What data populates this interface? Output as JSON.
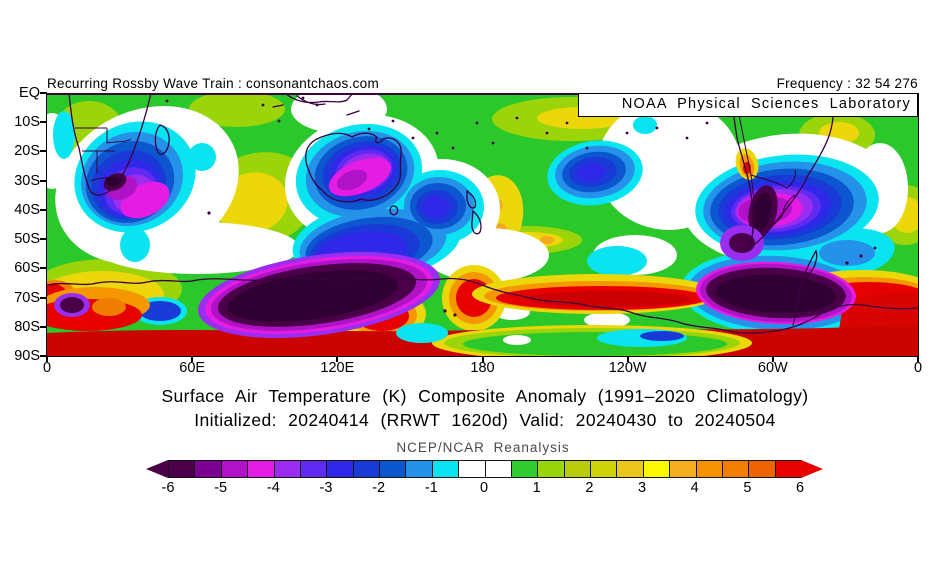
{
  "header": {
    "left_note": "Recurring Rossby Wave Train : consonantchaos.com",
    "right_note": "Frequency : 32 54 276"
  },
  "map": {
    "overlay_label": "NOAA Physical Sciences Laboratory",
    "y_tick_labels": [
      "EQ",
      "10S",
      "20S",
      "30S",
      "40S",
      "50S",
      "60S",
      "70S",
      "80S",
      "90S"
    ],
    "x_tick_labels": [
      "0",
      "60E",
      "120E",
      "180",
      "120W",
      "60W",
      "0"
    ]
  },
  "titles": {
    "line1": "Surface Air Temperature (K) Composite Anomaly (1991–2020 Climatology)",
    "line2": "Initialized: 20240414 (RRWT 1620d) Valid: 20240430 to 20240504"
  },
  "colorbar": {
    "title": "NCEP/NCAR Reanalysis",
    "tick_labels": [
      "-6",
      "-5",
      "-4",
      "-3",
      "-2",
      "-1",
      "0",
      "1",
      "2",
      "3",
      "4",
      "5",
      "6"
    ],
    "segment_colors": [
      "#4a0048",
      "#7a0091",
      "#b012c8",
      "#e41ce4",
      "#9a2df0",
      "#5f2af2",
      "#3028e8",
      "#1a3ad8",
      "#0c56d0",
      "#2492e8",
      "#0ae4f0",
      "#ffffff",
      "#ffffff",
      "#32cc32",
      "#98d60a",
      "#b8cc0c",
      "#cdd20a",
      "#e9c71b",
      "#fcf800",
      "#f6ae1e",
      "#f59200",
      "#f28000",
      "#ee6200",
      "#e60000"
    ],
    "left_arrow_color": "#4a0048",
    "right_arrow_color": "#e60000"
  },
  "chart_data": {
    "type": "heatmap",
    "title": "Surface Air Temperature (K) Composite Anomaly (1991–2020 Climatology)",
    "subtitle": "Initialized: 20240414 (RRWT 1620d) Valid: 20240430 to 20240504",
    "dataset_label": "NCEP/NCAR Reanalysis",
    "variable": "surface air temperature composite anomaly",
    "units": "K",
    "region": "Southern Hemisphere, equator to South Pole, all longitudes",
    "x_axis": {
      "ticks": [
        "0",
        "60E",
        "120E",
        "180",
        "120W",
        "60W",
        "0"
      ],
      "range_deg_east": [
        0,
        360
      ]
    },
    "y_axis": {
      "ticks": [
        "EQ",
        "10S",
        "20S",
        "30S",
        "40S",
        "50S",
        "60S",
        "70S",
        "80S",
        "90S"
      ],
      "range": [
        "EQ",
        "90S"
      ]
    },
    "colorbar": {
      "min": -6,
      "max": 6,
      "interval": 0.5,
      "tick_labels": [
        -6,
        -5,
        -4,
        -3,
        -2,
        -1,
        0,
        1,
        2,
        3,
        4,
        5,
        6
      ],
      "open_ended_arrows": true
    },
    "notable_features": [
      {
        "region": "SW Indian Ocean south of South Africa (15E-55E, 25S-50S)",
        "sign": "negative",
        "peak_anomaly_K": -6
      },
      {
        "region": "Western and central Australia (115E-145E, 15S-35S)",
        "sign": "negative",
        "peak_anomaly_K": -4.5
      },
      {
        "region": "Tasman Sea between Tasmania and New Zealand (150E-170E, 35S-50S)",
        "sign": "negative",
        "peak_anomaly_K": -3
      },
      {
        "region": "South-central Pacific (170W-150W, 20S-35S)",
        "sign": "negative",
        "peak_anomaly_K": -3
      },
      {
        "region": "Southern South America / Argentina (75W-55W, 30S-55S)",
        "sign": "negative",
        "peak_anomaly_K": -6
      },
      {
        "region": "East Antarctica plateau (60E-160E, 65S-80S)",
        "sign": "negative",
        "peak_anomaly_K": -6
      },
      {
        "region": "West Antarctica near Antarctic Peninsula (110W-30W, 68S-80S)",
        "sign": "negative",
        "peak_anomaly_K": -6
      },
      {
        "region": "Circumpolar coastal Antarctica and 80S-90S band",
        "sign": "positive",
        "peak_anomaly_K": 6
      },
      {
        "region": "Central South Indian Ocean (55E-95E, 30S-45S)",
        "sign": "positive",
        "peak_anomaly_K": 3.5
      },
      {
        "region": "East of New Zealand (175E-165W, 35S-50S)",
        "sign": "positive",
        "peak_anomaly_K": 3.5
      },
      {
        "region": "Central Chile coast (72W, 32S)",
        "sign": "positive",
        "peak_anomaly_K": 5
      },
      {
        "region": "Tropical/subtropical background (EQ-30S most longitudes)",
        "sign": "positive",
        "peak_anomaly_K": 1.5
      },
      {
        "region": "Ross Sea sector at far south (170E-130W, 85S-90S)",
        "sign": "positive",
        "peak_anomaly_K": 1
      }
    ]
  }
}
